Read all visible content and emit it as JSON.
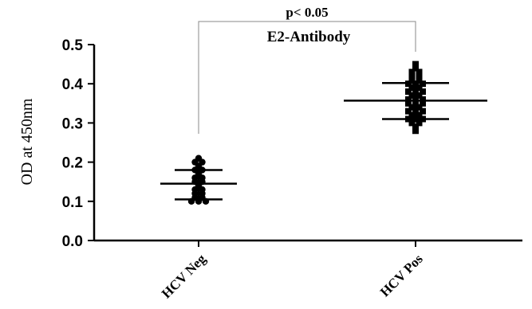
{
  "chart_data": {
    "type": "scatter",
    "title": "E2-Antibody",
    "annotation": "p< 0.05",
    "xlabel": "",
    "ylabel": "OD at 450nm",
    "ylim": [
      0,
      0.5
    ],
    "yticks": [
      "0.0",
      "0.1",
      "0.2",
      "0.3",
      "0.4",
      "0.5"
    ],
    "categories": [
      "HCV Neg",
      "HCV Pos"
    ],
    "grid": false,
    "colors": {
      "points": "#000000",
      "axes": "#000000",
      "bracket": "#888888"
    },
    "series": [
      {
        "category": "HCV Neg",
        "mean": 0.145,
        "sd_low": 0.105,
        "sd_high": 0.18,
        "values": [
          0.21,
          0.2,
          0.2,
          0.19,
          0.18,
          0.18,
          0.17,
          0.16,
          0.16,
          0.15,
          0.15,
          0.14,
          0.13,
          0.13,
          0.12,
          0.12,
          0.11,
          0.11,
          0.1,
          0.1,
          0.1
        ]
      },
      {
        "category": "HCV Pos",
        "mean": 0.357,
        "sd_low": 0.31,
        "sd_high": 0.402,
        "values": [
          0.45,
          0.44,
          0.43,
          0.43,
          0.42,
          0.42,
          0.41,
          0.41,
          0.4,
          0.4,
          0.4,
          0.39,
          0.39,
          0.38,
          0.38,
          0.38,
          0.37,
          0.37,
          0.36,
          0.36,
          0.36,
          0.35,
          0.35,
          0.35,
          0.34,
          0.34,
          0.33,
          0.33,
          0.33,
          0.32,
          0.32,
          0.31,
          0.31,
          0.31,
          0.3,
          0.3,
          0.29,
          0.28
        ]
      }
    ]
  }
}
